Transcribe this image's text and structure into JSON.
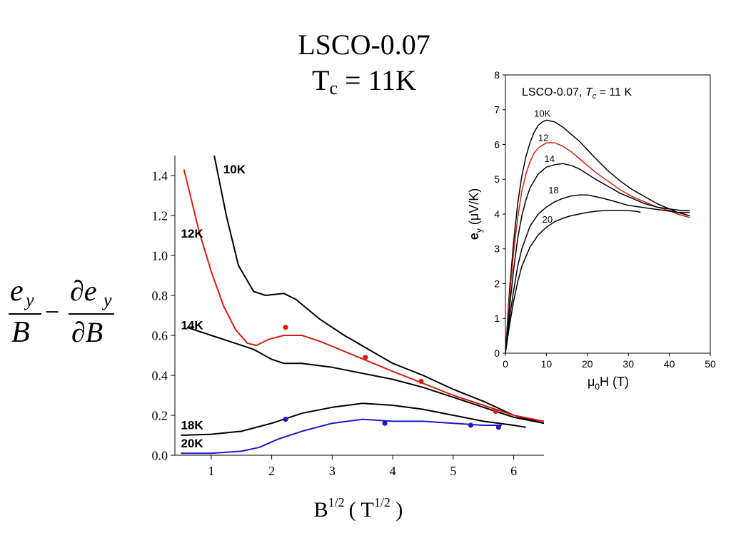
{
  "title": {
    "line1": "LSCO-0.07",
    "line2_main": "T",
    "line2_sub": "c",
    "line2_rest": " = 11K"
  },
  "chart_data": [
    {
      "type": "line",
      "ylabel_formula": "e_y/B − ∂e_y/∂B",
      "xlabel": "B",
      "xlabel_sup": "1/2",
      "xlabel_unit_open": "( T",
      "xlabel_unit_sup": "1/2",
      "xlabel_unit_close": " )",
      "xlim": [
        0.4,
        6.5
      ],
      "ylim": [
        0.0,
        1.5
      ],
      "xticks": [
        1,
        2,
        3,
        4,
        5,
        6
      ],
      "yticks": [
        0.0,
        0.2,
        0.4,
        0.6,
        0.8,
        1.0,
        1.2,
        1.4
      ],
      "grid": false,
      "series": [
        {
          "name": "10K",
          "color": "#000000",
          "x": [
            1.05,
            1.25,
            1.45,
            1.7,
            1.9,
            2.2,
            2.4,
            2.8,
            3.2,
            3.6,
            4.0,
            4.5,
            5.0,
            5.5,
            6.0,
            6.5
          ],
          "y": [
            1.5,
            1.2,
            0.95,
            0.82,
            0.8,
            0.81,
            0.78,
            0.68,
            0.6,
            0.53,
            0.46,
            0.4,
            0.33,
            0.27,
            0.2,
            0.16
          ]
        },
        {
          "name": "12K",
          "color": "#d42010",
          "x": [
            0.55,
            0.8,
            1.0,
            1.2,
            1.4,
            1.6,
            1.75,
            1.95,
            2.2,
            2.5,
            2.8,
            3.2,
            3.6,
            4.0,
            4.5,
            5.0,
            5.5,
            6.0,
            6.5
          ],
          "y": [
            1.43,
            1.12,
            0.92,
            0.75,
            0.63,
            0.56,
            0.55,
            0.58,
            0.6,
            0.6,
            0.57,
            0.52,
            0.47,
            0.42,
            0.36,
            0.3,
            0.25,
            0.2,
            0.17
          ]
        },
        {
          "name": "14K",
          "color": "#000000",
          "x": [
            0.6,
            1.0,
            1.4,
            1.7,
            2.0,
            2.2,
            2.5,
            3.0,
            3.5,
            4.0,
            4.5,
            5.0,
            5.5,
            6.0,
            6.5
          ],
          "y": [
            0.64,
            0.6,
            0.56,
            0.53,
            0.48,
            0.46,
            0.46,
            0.44,
            0.41,
            0.38,
            0.34,
            0.29,
            0.24,
            0.19,
            0.16
          ]
        },
        {
          "name": "18K",
          "color": "#000000",
          "x": [
            0.5,
            1.0,
            1.5,
            2.0,
            2.5,
            3.0,
            3.5,
            4.0,
            4.5,
            5.0,
            5.5,
            6.0,
            6.2
          ],
          "y": [
            0.1,
            0.105,
            0.12,
            0.16,
            0.21,
            0.24,
            0.26,
            0.25,
            0.23,
            0.2,
            0.17,
            0.15,
            0.14
          ]
        },
        {
          "name": "20K",
          "color": "#1a1ad0",
          "x": [
            0.5,
            1.0,
            1.5,
            1.8,
            2.1,
            2.5,
            3.0,
            3.5,
            4.0,
            4.5,
            5.0,
            5.5,
            5.8
          ],
          "y": [
            0.01,
            0.01,
            0.02,
            0.04,
            0.08,
            0.12,
            0.16,
            0.18,
            0.17,
            0.17,
            0.16,
            0.15,
            0.15
          ]
        }
      ],
      "points": [
        {
          "series": "12K",
          "color": "#d42010",
          "x": [
            2.23,
            3.55,
            4.47,
            5.7
          ],
          "y": [
            0.64,
            0.49,
            0.37,
            0.22
          ]
        },
        {
          "series": "20K",
          "color": "#1a1ad0",
          "x": [
            2.23,
            3.87,
            5.29,
            5.75
          ],
          "y": [
            0.18,
            0.16,
            0.15,
            0.14
          ]
        }
      ],
      "labels": [
        {
          "text": "10K",
          "x": 1.2,
          "y": 1.41
        },
        {
          "text": "12K",
          "x": 0.5,
          "y": 1.09
        },
        {
          "text": "14K",
          "x": 0.5,
          "y": 0.63
        },
        {
          "text": "18K",
          "x": 0.5,
          "y": 0.13
        },
        {
          "text": "20K",
          "x": 0.5,
          "y": 0.04
        }
      ]
    },
    {
      "type": "line",
      "title": "LSCO-0.07, ",
      "title_tc": "T",
      "title_tc_sub": "c",
      "title_rest": " = 11 K",
      "ylabel_bold": "e",
      "ylabel_sub": "y",
      "ylabel_unit": " (μV/K)",
      "xlabel_mu": "μ",
      "xlabel_sub": "0",
      "xlabel_rest": "H (T)",
      "xlim": [
        0,
        50
      ],
      "ylim": [
        0,
        8
      ],
      "xticks": [
        0,
        10,
        20,
        30,
        40,
        50
      ],
      "yticks": [
        0,
        1,
        2,
        3,
        4,
        5,
        6,
        7,
        8
      ],
      "grid": false,
      "series": [
        {
          "name": "10K",
          "color": "#000000",
          "x": [
            0,
            1,
            2,
            3,
            4,
            5,
            6,
            7,
            8,
            9,
            10,
            12,
            14,
            16,
            18,
            20,
            22,
            25,
            28,
            31,
            34,
            37,
            40,
            42,
            45
          ],
          "y": [
            0.0,
            1.8,
            3.2,
            4.3,
            5.1,
            5.65,
            6.05,
            6.35,
            6.55,
            6.65,
            6.7,
            6.65,
            6.5,
            6.3,
            6.1,
            5.85,
            5.6,
            5.25,
            4.95,
            4.7,
            4.5,
            4.3,
            4.15,
            4.05,
            3.95
          ]
        },
        {
          "name": "12",
          "color": "#d42010",
          "x": [
            0,
            1,
            2,
            3,
            4,
            5,
            6,
            7,
            8,
            10,
            12,
            14,
            16,
            18,
            20,
            22,
            25,
            28,
            31,
            34,
            37,
            40,
            42,
            45
          ],
          "y": [
            0.0,
            1.6,
            2.9,
            3.9,
            4.65,
            5.15,
            5.5,
            5.75,
            5.9,
            6.05,
            6.05,
            5.95,
            5.8,
            5.6,
            5.4,
            5.2,
            4.95,
            4.7,
            4.5,
            4.35,
            4.2,
            4.1,
            4.0,
            3.9
          ]
        },
        {
          "name": "14",
          "color": "#000000",
          "x": [
            0,
            1,
            2,
            3,
            4,
            5,
            6,
            8,
            10,
            12,
            14,
            16,
            18,
            20,
            22,
            25,
            28,
            31,
            34,
            37,
            40,
            43,
            45
          ],
          "y": [
            0.0,
            1.3,
            2.4,
            3.3,
            3.95,
            4.4,
            4.75,
            5.15,
            5.35,
            5.42,
            5.45,
            5.4,
            5.3,
            5.15,
            5.0,
            4.8,
            4.6,
            4.45,
            4.3,
            4.2,
            4.15,
            4.1,
            4.1
          ]
        },
        {
          "name": "18",
          "color": "#000000",
          "x": [
            0,
            1,
            2,
            3,
            4,
            6,
            8,
            10,
            12,
            14,
            16,
            18,
            20,
            22,
            24,
            27,
            30,
            33,
            36,
            39,
            42,
            45
          ],
          "y": [
            0.0,
            1.0,
            1.8,
            2.5,
            3.0,
            3.65,
            4.0,
            4.2,
            4.35,
            4.45,
            4.52,
            4.55,
            4.55,
            4.5,
            4.45,
            4.35,
            4.25,
            4.2,
            4.15,
            4.1,
            4.05,
            4.05
          ]
        },
        {
          "name": "20",
          "color": "#000000",
          "x": [
            0,
            1,
            2,
            3,
            4,
            6,
            8,
            10,
            12,
            14,
            16,
            18,
            20,
            22,
            24,
            26,
            28,
            30,
            32,
            33
          ],
          "y": [
            0.0,
            0.8,
            1.5,
            2.05,
            2.5,
            3.05,
            3.4,
            3.62,
            3.78,
            3.88,
            3.95,
            4.0,
            4.05,
            4.08,
            4.1,
            4.1,
            4.1,
            4.1,
            4.08,
            4.05
          ]
        }
      ],
      "labels": [
        {
          "text": "10K",
          "x": 7.0,
          "y": 6.8
        },
        {
          "text": "12",
          "x": 8.0,
          "y": 6.1
        },
        {
          "text": "14",
          "x": 9.5,
          "y": 5.5
        },
        {
          "text": "18",
          "x": 10.5,
          "y": 4.6
        },
        {
          "text": "20",
          "x": 9.0,
          "y": 3.75
        }
      ]
    }
  ]
}
